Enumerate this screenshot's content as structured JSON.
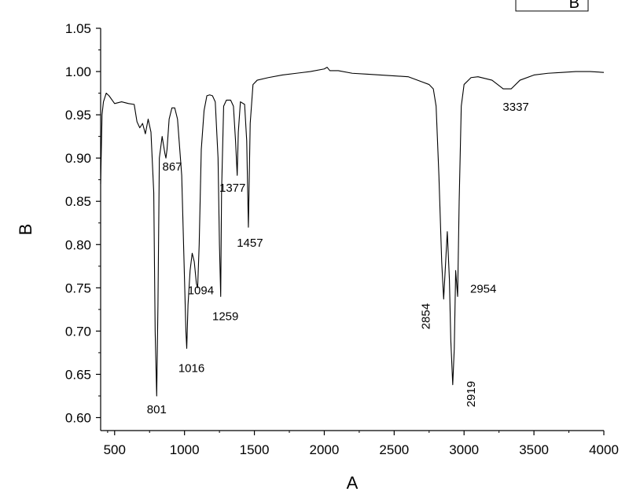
{
  "chart_data": {
    "type": "line",
    "xlabel": "A",
    "ylabel": "B",
    "xlim": [
      400,
      4000
    ],
    "ylim": [
      0.585,
      1.05
    ],
    "x_ticks": [
      500,
      1000,
      1500,
      2000,
      2500,
      3000,
      3500,
      4000
    ],
    "x_tick_labels": [
      "500",
      "1000",
      "1500",
      "2000",
      "2500",
      "3000",
      "3500",
      "4000"
    ],
    "y_ticks": [
      0.6,
      0.65,
      0.7,
      0.75,
      0.8,
      0.85,
      0.9,
      0.95,
      1.0,
      1.05
    ],
    "y_tick_labels": [
      "0.60",
      "0.65",
      "0.70",
      "0.75",
      "0.80",
      "0.85",
      "0.90",
      "0.95",
      "1.00",
      "1.05"
    ],
    "grid": false,
    "legend": {
      "placement": "top-right",
      "entries": [
        "B"
      ]
    },
    "series": [
      {
        "name": "B",
        "color": "#000000",
        "x": [
          400,
          410,
          420,
          440,
          460,
          500,
          550,
          600,
          640,
          660,
          680,
          700,
          720,
          740,
          760,
          780,
          790,
          801,
          810,
          820,
          840,
          860,
          867,
          875,
          890,
          910,
          930,
          950,
          980,
          1000,
          1010,
          1016,
          1025,
          1040,
          1055,
          1070,
          1085,
          1094,
          1105,
          1120,
          1140,
          1160,
          1180,
          1200,
          1220,
          1240,
          1250,
          1259,
          1265,
          1280,
          1300,
          1330,
          1350,
          1365,
          1377,
          1385,
          1400,
          1430,
          1445,
          1457,
          1470,
          1490,
          1520,
          1600,
          1700,
          1800,
          1900,
          2000,
          2020,
          2040,
          2100,
          2200,
          2300,
          2400,
          2500,
          2600,
          2700,
          2750,
          2780,
          2800,
          2820,
          2840,
          2854,
          2865,
          2880,
          2895,
          2905,
          2919,
          2930,
          2940,
          2954,
          2965,
          2980,
          3000,
          3050,
          3100,
          3200,
          3280,
          3337,
          3400,
          3500,
          3600,
          3700,
          3800,
          3900,
          4000
        ],
        "y": [
          0.87,
          0.95,
          0.965,
          0.975,
          0.972,
          0.963,
          0.965,
          0.963,
          0.962,
          0.942,
          0.935,
          0.94,
          0.928,
          0.945,
          0.93,
          0.86,
          0.7,
          0.625,
          0.73,
          0.9,
          0.925,
          0.905,
          0.9,
          0.91,
          0.945,
          0.958,
          0.958,
          0.945,
          0.88,
          0.76,
          0.7,
          0.68,
          0.73,
          0.77,
          0.79,
          0.78,
          0.755,
          0.75,
          0.8,
          0.91,
          0.955,
          0.972,
          0.973,
          0.972,
          0.965,
          0.9,
          0.8,
          0.74,
          0.86,
          0.96,
          0.967,
          0.967,
          0.96,
          0.92,
          0.88,
          0.93,
          0.965,
          0.962,
          0.92,
          0.82,
          0.94,
          0.985,
          0.99,
          0.993,
          0.996,
          0.998,
          1.0,
          1.003,
          1.005,
          1.001,
          1.001,
          0.998,
          0.997,
          0.996,
          0.995,
          0.994,
          0.988,
          0.985,
          0.98,
          0.96,
          0.88,
          0.78,
          0.737,
          0.77,
          0.815,
          0.76,
          0.69,
          0.638,
          0.68,
          0.77,
          0.74,
          0.85,
          0.96,
          0.985,
          0.993,
          0.994,
          0.99,
          0.98,
          0.98,
          0.99,
          0.996,
          0.998,
          0.999,
          1.0,
          1.0,
          0.999
        ],
        "annotations": [
          {
            "text": "801",
            "x": 801,
            "y": 0.625
          },
          {
            "text": "867",
            "x": 867,
            "y": 0.9
          },
          {
            "text": "1016",
            "x": 1016,
            "y": 0.68
          },
          {
            "text": "1094",
            "x": 1094,
            "y": 0.75
          },
          {
            "text": "1259",
            "x": 1259,
            "y": 0.74
          },
          {
            "text": "1377",
            "x": 1377,
            "y": 0.88
          },
          {
            "text": "1457",
            "x": 1457,
            "y": 0.82
          },
          {
            "text": "2854",
            "x": 2854,
            "y": 0.737
          },
          {
            "text": "2919",
            "x": 2919,
            "y": 0.638
          },
          {
            "text": "2954",
            "x": 2954,
            "y": 0.74
          },
          {
            "text": "3337",
            "x": 3337,
            "y": 0.98
          }
        ]
      }
    ]
  }
}
